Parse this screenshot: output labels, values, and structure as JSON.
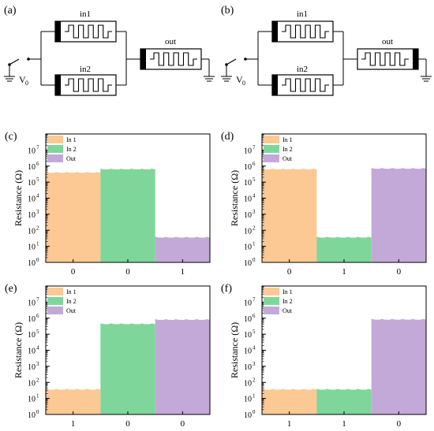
{
  "circuits": [
    {
      "panel_label": "(a)",
      "top_label": "in1",
      "bottom_label": "in2",
      "out_label": "out",
      "source_label": "V",
      "source_sub": "0"
    },
    {
      "panel_label": "(b)",
      "top_label": "in1",
      "bottom_label": "in2",
      "out_label": "out",
      "source_label": "V",
      "source_sub": "0"
    }
  ],
  "colors": {
    "in1": "#fcc894",
    "in2": "#7fd69a",
    "out": "#c3a9d8"
  },
  "chart_data": [
    {
      "panel_label": "(c)",
      "type": "bar",
      "yscale": "log",
      "categories": [
        "0",
        "0",
        "1"
      ],
      "values": [
        380000,
        620000,
        35
      ],
      "series_names": [
        "In 1",
        "In 2",
        "Out"
      ],
      "ylabel": "Resistance (Ω)",
      "ylim": [
        1,
        100000000
      ],
      "yticks": [
        {
          "base": "10",
          "exp": "0",
          "v": 1
        },
        {
          "base": "10",
          "exp": "1",
          "v": 10
        },
        {
          "base": "10",
          "exp": "2",
          "v": 100
        },
        {
          "base": "10",
          "exp": "3",
          "v": 1000
        },
        {
          "base": "10",
          "exp": "4",
          "v": 10000
        },
        {
          "base": "10",
          "exp": "5",
          "v": 100000
        },
        {
          "base": "10",
          "exp": "6",
          "v": 1000000
        },
        {
          "base": "10",
          "exp": "7",
          "v": 10000000
        }
      ],
      "legend_position": "top-left"
    },
    {
      "panel_label": "(d)",
      "type": "bar",
      "yscale": "log",
      "categories": [
        "0",
        "1",
        "0"
      ],
      "values": [
        620000,
        35,
        680000
      ],
      "series_names": [
        "In 1",
        "In 2",
        "Out"
      ],
      "ylabel": "Resistance (Ω)",
      "ylim": [
        1,
        100000000
      ],
      "yticks": [
        {
          "base": "10",
          "exp": "0",
          "v": 1
        },
        {
          "base": "10",
          "exp": "1",
          "v": 10
        },
        {
          "base": "10",
          "exp": "2",
          "v": 100
        },
        {
          "base": "10",
          "exp": "3",
          "v": 1000
        },
        {
          "base": "10",
          "exp": "4",
          "v": 10000
        },
        {
          "base": "10",
          "exp": "5",
          "v": 100000
        },
        {
          "base": "10",
          "exp": "6",
          "v": 1000000
        },
        {
          "base": "10",
          "exp": "7",
          "v": 10000000
        }
      ],
      "legend_position": "top-left"
    },
    {
      "panel_label": "(e)",
      "type": "bar",
      "yscale": "log",
      "categories": [
        "1",
        "0",
        "0"
      ],
      "values": [
        35,
        420000,
        780000
      ],
      "series_names": [
        "In 1",
        "In 2",
        "Out"
      ],
      "ylabel": "Resistance (Ω)",
      "ylim": [
        1,
        100000000
      ],
      "yticks": [
        {
          "base": "10",
          "exp": "0",
          "v": 1
        },
        {
          "base": "10",
          "exp": "1",
          "v": 10
        },
        {
          "base": "10",
          "exp": "2",
          "v": 100
        },
        {
          "base": "10",
          "exp": "3",
          "v": 1000
        },
        {
          "base": "10",
          "exp": "4",
          "v": 10000
        },
        {
          "base": "10",
          "exp": "5",
          "v": 100000
        },
        {
          "base": "10",
          "exp": "6",
          "v": 1000000
        },
        {
          "base": "10",
          "exp": "7",
          "v": 10000000
        }
      ],
      "legend_position": "top-left"
    },
    {
      "panel_label": "(f)",
      "type": "bar",
      "yscale": "log",
      "categories": [
        "1",
        "1",
        "0"
      ],
      "values": [
        35,
        35,
        800000
      ],
      "series_names": [
        "In 1",
        "In 2",
        "Out"
      ],
      "ylabel": "Resistance (Ω)",
      "ylim": [
        1,
        100000000
      ],
      "yticks": [
        {
          "base": "10",
          "exp": "0",
          "v": 1
        },
        {
          "base": "10",
          "exp": "1",
          "v": 10
        },
        {
          "base": "10",
          "exp": "2",
          "v": 100
        },
        {
          "base": "10",
          "exp": "3",
          "v": 1000
        },
        {
          "base": "10",
          "exp": "4",
          "v": 10000
        },
        {
          "base": "10",
          "exp": "5",
          "v": 100000
        },
        {
          "base": "10",
          "exp": "6",
          "v": 1000000
        },
        {
          "base": "10",
          "exp": "7",
          "v": 10000000
        }
      ],
      "legend_position": "top-left"
    }
  ]
}
